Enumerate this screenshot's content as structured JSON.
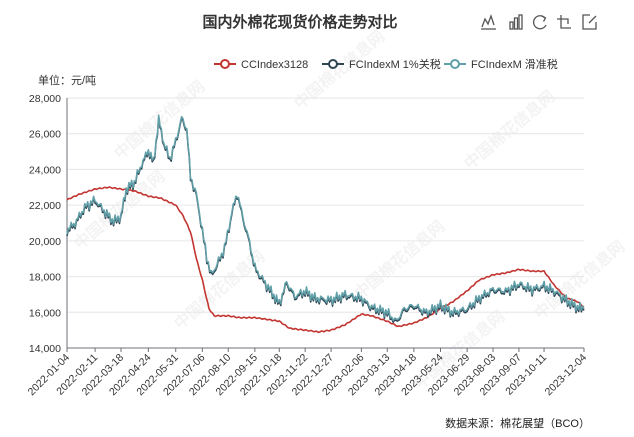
{
  "chart_data": {
    "type": "line",
    "title": "国内外棉花现货价格走势对比",
    "ylabel": "单位：元/吨",
    "source": "数据来源：棉花展望（BCO）",
    "ylim": [
      14000,
      28000
    ],
    "yticks": [
      14000,
      16000,
      18000,
      20000,
      22000,
      24000,
      26000,
      28000
    ],
    "ytick_labels": [
      "14,000",
      "16,000",
      "18,000",
      "20,000",
      "22,000",
      "24,000",
      "26,000",
      "28,000"
    ],
    "xlim": [
      "2022-01-04",
      "2023-12-04"
    ],
    "xtick_labels": [
      "2022-01-04",
      "2022-02-11",
      "2022-03-18",
      "2022-04-24",
      "2022-05-31",
      "2022-07-06",
      "2022-08-10",
      "2022-09-15",
      "2022-10-18",
      "2022-11-22",
      "2022-12-27",
      "2023-02-06",
      "2023-03-13",
      "2023-04-18",
      "2023-05-24",
      "2023-06-29",
      "2023-08-03",
      "2023-09-07",
      "2023-10-11",
      "2023-12-04"
    ],
    "legend_position": "top-right",
    "grid": true,
    "series": [
      {
        "name": "CCIndex3128",
        "color": "#c23531",
        "points": [
          [
            "2022-01-04",
            22300
          ],
          [
            "2022-01-20",
            22600
          ],
          [
            "2022-02-11",
            22900
          ],
          [
            "2022-03-01",
            23000
          ],
          [
            "2022-03-18",
            22900
          ],
          [
            "2022-04-05",
            22800
          ],
          [
            "2022-04-24",
            22500
          ],
          [
            "2022-05-10",
            22400
          ],
          [
            "2022-05-31",
            22000
          ],
          [
            "2022-06-10",
            21400
          ],
          [
            "2022-06-20",
            20500
          ],
          [
            "2022-06-28",
            19000
          ],
          [
            "2022-07-06",
            17800
          ],
          [
            "2022-07-15",
            16200
          ],
          [
            "2022-07-22",
            15800
          ],
          [
            "2022-08-10",
            15800
          ],
          [
            "2022-08-25",
            15700
          ],
          [
            "2022-09-15",
            15700
          ],
          [
            "2022-10-18",
            15500
          ],
          [
            "2022-11-01",
            15100
          ],
          [
            "2022-11-22",
            15000
          ],
          [
            "2022-12-10",
            14900
          ],
          [
            "2022-12-27",
            15000
          ],
          [
            "2023-01-15",
            15300
          ],
          [
            "2023-02-06",
            15900
          ],
          [
            "2023-02-20",
            15800
          ],
          [
            "2023-03-13",
            15500
          ],
          [
            "2023-03-28",
            15200
          ],
          [
            "2023-04-18",
            15400
          ],
          [
            "2023-05-05",
            15700
          ],
          [
            "2023-05-24",
            16200
          ],
          [
            "2023-06-10",
            16600
          ],
          [
            "2023-06-29",
            17200
          ],
          [
            "2023-07-15",
            17800
          ],
          [
            "2023-08-03",
            18100
          ],
          [
            "2023-08-20",
            18200
          ],
          [
            "2023-09-07",
            18400
          ],
          [
            "2023-09-25",
            18300
          ],
          [
            "2023-10-11",
            18300
          ],
          [
            "2023-10-25",
            17500
          ],
          [
            "2023-11-10",
            16800
          ],
          [
            "2023-11-25",
            16600
          ],
          [
            "2023-12-04",
            16300
          ]
        ]
      },
      {
        "name": "FCIndexM 1%关税",
        "color": "#2f4554",
        "points": [
          [
            "2022-01-04",
            20500
          ],
          [
            "2022-01-15",
            20900
          ],
          [
            "2022-01-28",
            21800
          ],
          [
            "2022-02-11",
            22200
          ],
          [
            "2022-02-25",
            21500
          ],
          [
            "2022-03-08",
            21000
          ],
          [
            "2022-03-18",
            21300
          ],
          [
            "2022-03-25",
            22800
          ],
          [
            "2022-04-05",
            23200
          ],
          [
            "2022-04-15",
            24200
          ],
          [
            "2022-04-24",
            25000
          ],
          [
            "2022-05-01",
            24300
          ],
          [
            "2022-05-08",
            26700
          ],
          [
            "2022-05-15",
            25400
          ],
          [
            "2022-05-23",
            24500
          ],
          [
            "2022-05-31",
            25500
          ],
          [
            "2022-06-08",
            26800
          ],
          [
            "2022-06-15",
            26200
          ],
          [
            "2022-06-20",
            23500
          ],
          [
            "2022-06-28",
            22500
          ],
          [
            "2022-07-06",
            20500
          ],
          [
            "2022-07-12",
            19000
          ],
          [
            "2022-07-18",
            18000
          ],
          [
            "2022-07-26",
            18600
          ],
          [
            "2022-08-05",
            19500
          ],
          [
            "2022-08-15",
            21500
          ],
          [
            "2022-08-22",
            22600
          ],
          [
            "2022-08-30",
            21200
          ],
          [
            "2022-09-08",
            19800
          ],
          [
            "2022-09-15",
            18400
          ],
          [
            "2022-09-25",
            17800
          ],
          [
            "2022-10-05",
            17200
          ],
          [
            "2022-10-18",
            16400
          ],
          [
            "2022-10-28",
            17600
          ],
          [
            "2022-11-08",
            16800
          ],
          [
            "2022-11-22",
            17100
          ],
          [
            "2022-12-05",
            16700
          ],
          [
            "2022-12-27",
            16600
          ],
          [
            "2023-01-15",
            16900
          ],
          [
            "2023-02-06",
            16700
          ],
          [
            "2023-02-20",
            16200
          ],
          [
            "2023-03-13",
            15900
          ],
          [
            "2023-03-25",
            15400
          ],
          [
            "2023-04-05",
            16100
          ],
          [
            "2023-04-18",
            16300
          ],
          [
            "2023-05-05",
            15900
          ],
          [
            "2023-05-24",
            16300
          ],
          [
            "2023-06-10",
            15900
          ],
          [
            "2023-06-29",
            16100
          ],
          [
            "2023-07-15",
            16700
          ],
          [
            "2023-08-03",
            17200
          ],
          [
            "2023-08-20",
            17100
          ],
          [
            "2023-09-07",
            17500
          ],
          [
            "2023-09-25",
            17200
          ],
          [
            "2023-10-11",
            17400
          ],
          [
            "2023-10-25",
            17100
          ],
          [
            "2023-11-10",
            16600
          ],
          [
            "2023-11-25",
            16200
          ],
          [
            "2023-12-04",
            16100
          ]
        ]
      },
      {
        "name": "FCIndexM 滑准税",
        "color": "#61a0a8",
        "points": [
          [
            "2022-01-04",
            20600
          ],
          [
            "2022-01-15",
            21000
          ],
          [
            "2022-01-28",
            21900
          ],
          [
            "2022-02-11",
            22300
          ],
          [
            "2022-02-25",
            21600
          ],
          [
            "2022-03-08",
            21100
          ],
          [
            "2022-03-18",
            21400
          ],
          [
            "2022-03-25",
            22900
          ],
          [
            "2022-04-05",
            23300
          ],
          [
            "2022-04-15",
            24300
          ],
          [
            "2022-04-24",
            25100
          ],
          [
            "2022-05-01",
            24400
          ],
          [
            "2022-05-08",
            26800
          ],
          [
            "2022-05-15",
            25500
          ],
          [
            "2022-05-23",
            24600
          ],
          [
            "2022-05-31",
            25600
          ],
          [
            "2022-06-08",
            26900
          ],
          [
            "2022-06-15",
            26300
          ],
          [
            "2022-06-20",
            23600
          ],
          [
            "2022-06-28",
            22600
          ],
          [
            "2022-07-06",
            20600
          ],
          [
            "2022-07-12",
            19100
          ],
          [
            "2022-07-18",
            18100
          ],
          [
            "2022-07-26",
            18700
          ],
          [
            "2022-08-05",
            19600
          ],
          [
            "2022-08-15",
            21600
          ],
          [
            "2022-08-22",
            22700
          ],
          [
            "2022-08-30",
            21300
          ],
          [
            "2022-09-08",
            19900
          ],
          [
            "2022-09-15",
            18500
          ],
          [
            "2022-09-25",
            17900
          ],
          [
            "2022-10-05",
            17300
          ],
          [
            "2022-10-18",
            16500
          ],
          [
            "2022-10-28",
            17700
          ],
          [
            "2022-11-08",
            16900
          ],
          [
            "2022-11-22",
            17200
          ],
          [
            "2022-12-05",
            16800
          ],
          [
            "2022-12-27",
            16700
          ],
          [
            "2023-01-15",
            17000
          ],
          [
            "2023-02-06",
            16800
          ],
          [
            "2023-02-20",
            16300
          ],
          [
            "2023-03-13",
            16000
          ],
          [
            "2023-03-25",
            15500
          ],
          [
            "2023-04-05",
            16200
          ],
          [
            "2023-04-18",
            16400
          ],
          [
            "2023-05-05",
            16000
          ],
          [
            "2023-05-24",
            16400
          ],
          [
            "2023-06-10",
            16000
          ],
          [
            "2023-06-29",
            16200
          ],
          [
            "2023-07-15",
            16800
          ],
          [
            "2023-08-03",
            17300
          ],
          [
            "2023-08-20",
            17200
          ],
          [
            "2023-09-07",
            17600
          ],
          [
            "2023-09-25",
            17300
          ],
          [
            "2023-10-11",
            17500
          ],
          [
            "2023-10-25",
            17200
          ],
          [
            "2023-11-10",
            16700
          ],
          [
            "2023-11-25",
            16300
          ],
          [
            "2023-12-04",
            16200
          ]
        ]
      }
    ]
  },
  "toolbox": {
    "icons": [
      "line-chart-icon",
      "bar-chart-icon",
      "restore-icon",
      "save-image-icon",
      "zoom-icon"
    ]
  }
}
